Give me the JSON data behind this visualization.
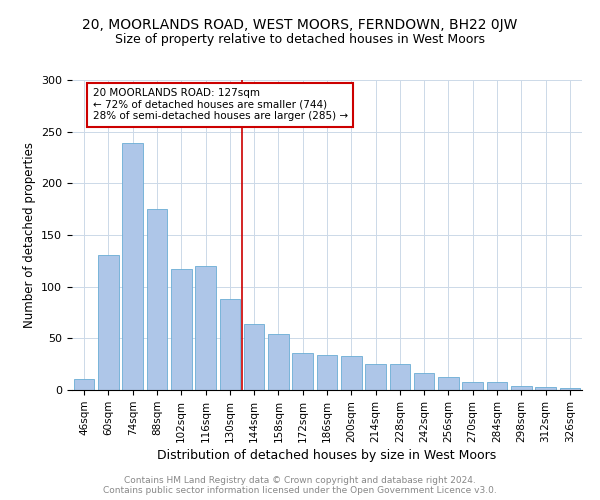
{
  "title": "20, MOORLANDS ROAD, WEST MOORS, FERNDOWN, BH22 0JW",
  "subtitle": "Size of property relative to detached houses in West Moors",
  "xlabel": "Distribution of detached houses by size in West Moors",
  "ylabel": "Number of detached properties",
  "categories": [
    "46sqm",
    "60sqm",
    "74sqm",
    "88sqm",
    "102sqm",
    "116sqm",
    "130sqm",
    "144sqm",
    "158sqm",
    "172sqm",
    "186sqm",
    "200sqm",
    "214sqm",
    "228sqm",
    "242sqm",
    "256sqm",
    "270sqm",
    "284sqm",
    "298sqm",
    "312sqm",
    "326sqm"
  ],
  "values": [
    11,
    131,
    239,
    175,
    117,
    120,
    88,
    64,
    54,
    36,
    34,
    33,
    25,
    25,
    16,
    13,
    8,
    8,
    4,
    3,
    2
  ],
  "bar_color": "#aec6e8",
  "bar_edge_color": "#6aadd5",
  "vline_x": 6.5,
  "vline_color": "#cc0000",
  "annotation_lines": [
    "20 MOORLANDS ROAD: 127sqm",
    "← 72% of detached houses are smaller (744)",
    "28% of semi-detached houses are larger (285) →"
  ],
  "annotation_box_color": "#cc0000",
  "footer_line1": "Contains HM Land Registry data © Crown copyright and database right 2024.",
  "footer_line2": "Contains public sector information licensed under the Open Government Licence v3.0.",
  "ylim": [
    0,
    300
  ],
  "background_color": "#ffffff",
  "grid_color": "#ccd9e8"
}
